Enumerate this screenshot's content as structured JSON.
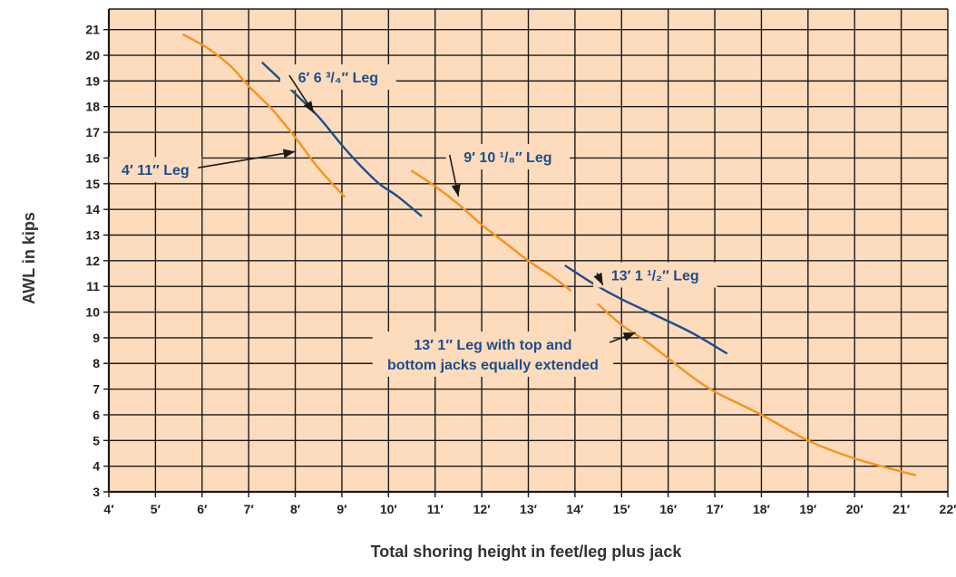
{
  "chart_data": {
    "type": "line",
    "title": "",
    "xlabel": "Total shoring height in feet/leg plus jack",
    "ylabel": "AWL in kips",
    "xlim": [
      4,
      22
    ],
    "ylim": [
      3,
      21.8
    ],
    "grid": true,
    "x_ticks": [
      4,
      5,
      6,
      7,
      8,
      9,
      10,
      11,
      12,
      13,
      14,
      15,
      16,
      17,
      18,
      19,
      20,
      21,
      22
    ],
    "x_tick_labels": [
      "4′",
      "5′",
      "6′",
      "7′",
      "8′",
      "9′",
      "10′",
      "11′",
      "12′",
      "13′",
      "14′",
      "15′",
      "16′",
      "17′",
      "18′",
      "19′",
      "20′",
      "21′",
      "22′"
    ],
    "y_ticks": [
      3,
      4,
      5,
      6,
      7,
      8,
      9,
      10,
      11,
      12,
      13,
      14,
      15,
      16,
      17,
      18,
      19,
      20,
      21
    ],
    "y_tick_labels": [
      "3",
      "4",
      "5",
      "6",
      "7",
      "8",
      "9",
      "10",
      "11",
      "12",
      "13",
      "14",
      "15",
      "16",
      "17",
      "18",
      "19",
      "20",
      "21"
    ],
    "colors": {
      "plot_bg": "#fcdcbd",
      "grid": "#1a1a1a",
      "orange": "#f7931e",
      "blue": "#1f4d8c",
      "text": "#1f4d8c"
    },
    "series": [
      {
        "id": "leg-4-11",
        "color": "orange",
        "points": [
          [
            5.6,
            20.8
          ],
          [
            6.1,
            20.3
          ],
          [
            6.6,
            19.6
          ],
          [
            7.0,
            18.8
          ],
          [
            7.5,
            17.9
          ],
          [
            8.0,
            16.8
          ],
          [
            8.5,
            15.6
          ],
          [
            9.05,
            14.5
          ]
        ]
      },
      {
        "id": "leg-6-6-3-4",
        "color": "blue",
        "points": [
          [
            7.3,
            19.7
          ],
          [
            8.0,
            18.5
          ],
          [
            8.5,
            17.6
          ],
          [
            9.0,
            16.5
          ],
          [
            9.4,
            15.7
          ],
          [
            9.8,
            15.0
          ],
          [
            10.2,
            14.5
          ],
          [
            10.7,
            13.75
          ]
        ]
      },
      {
        "id": "leg-9-10-1-8",
        "color": "orange",
        "points": [
          [
            10.5,
            15.5
          ],
          [
            11.0,
            14.9
          ],
          [
            11.5,
            14.2
          ],
          [
            12.0,
            13.4
          ],
          [
            12.5,
            12.7
          ],
          [
            13.0,
            12.0
          ],
          [
            13.5,
            11.4
          ],
          [
            13.9,
            10.85
          ]
        ]
      },
      {
        "id": "leg-13-1-1-2",
        "color": "blue",
        "points": [
          [
            13.8,
            11.8
          ],
          [
            14.4,
            11.1
          ],
          [
            15.0,
            10.5
          ],
          [
            15.7,
            9.9
          ],
          [
            16.5,
            9.2
          ],
          [
            17.25,
            8.4
          ]
        ]
      },
      {
        "id": "leg-13-1-jacks",
        "color": "orange",
        "points": [
          [
            14.5,
            10.3
          ],
          [
            15.0,
            9.5
          ],
          [
            15.5,
            8.9
          ],
          [
            16.0,
            8.2
          ],
          [
            16.5,
            7.5
          ],
          [
            17.0,
            6.9
          ],
          [
            18.0,
            6.0
          ],
          [
            19.0,
            5.0
          ],
          [
            20.0,
            4.3
          ],
          [
            21.3,
            3.65
          ]
        ]
      }
    ],
    "annotations": [
      {
        "id": "ann-6-6",
        "lines": [
          "6′ 6 ³/₄″ Leg"
        ],
        "tx": 8.92,
        "ty": 19.15,
        "ax": 8.4,
        "ay": 17.75
      },
      {
        "id": "ann-4-11",
        "lines": [
          "4′ 11″ Leg"
        ],
        "tx": 5.0,
        "ty": 15.55,
        "ax": 8.0,
        "ay": 16.25
      },
      {
        "id": "ann-9-10",
        "lines": [
          "9′ 10 ¹/₈″ Leg"
        ],
        "tx": 12.56,
        "ty": 16.05,
        "ax": 11.5,
        "ay": 14.5
      },
      {
        "id": "ann-13-1-1-2",
        "lines": [
          "13′ 1 ¹/₂″ Leg"
        ],
        "tx": 15.72,
        "ty": 11.45,
        "ax": 14.6,
        "ay": 11.05
      },
      {
        "id": "ann-13-1-jacks",
        "lines": [
          "13′ 1″ Leg with top and",
          "bottom jacks equally extended"
        ],
        "tx": 12.24,
        "ty": 8.75,
        "ax": 15.3,
        "ay": 9.2
      }
    ]
  }
}
